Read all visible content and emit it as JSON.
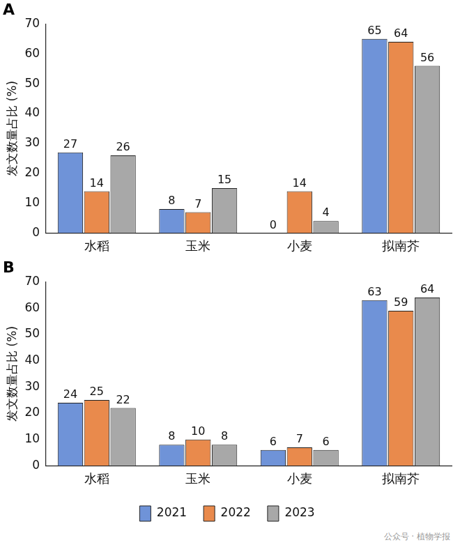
{
  "chart_data": [
    {
      "type": "bar",
      "title": "A",
      "ylabel": "发文数量占比 (%)",
      "categories": [
        "水稻",
        "玉米",
        "小麦",
        "拟南芥"
      ],
      "series": [
        {
          "name": "2021",
          "color": "#6f93d8",
          "values": [
            27,
            8,
            0,
            65
          ]
        },
        {
          "name": "2022",
          "color": "#e98a4c",
          "values": [
            14,
            7,
            14,
            64
          ]
        },
        {
          "name": "2023",
          "color": "#a8a8a8",
          "values": [
            26,
            15,
            4,
            56
          ]
        }
      ],
      "ylim": [
        0,
        70
      ],
      "yticks": [
        0,
        10,
        20,
        30,
        40,
        50,
        60,
        70
      ],
      "grid": false,
      "data_labels": true
    },
    {
      "type": "bar",
      "title": "B",
      "ylabel": "发文数量占比 (%)",
      "categories": [
        "水稻",
        "玉米",
        "小麦",
        "拟南芥"
      ],
      "series": [
        {
          "name": "2021",
          "color": "#6f93d8",
          "values": [
            24,
            8,
            6,
            63
          ]
        },
        {
          "name": "2022",
          "color": "#e98a4c",
          "values": [
            25,
            10,
            7,
            59
          ]
        },
        {
          "name": "2023",
          "color": "#a8a8a8",
          "values": [
            22,
            8,
            6,
            64
          ]
        }
      ],
      "ylim": [
        0,
        70
      ],
      "yticks": [
        0,
        10,
        20,
        30,
        40,
        50,
        60,
        70
      ],
      "grid": false,
      "data_labels": true,
      "legend": "bottom"
    }
  ],
  "watermark": "公众号 · 植物学报"
}
